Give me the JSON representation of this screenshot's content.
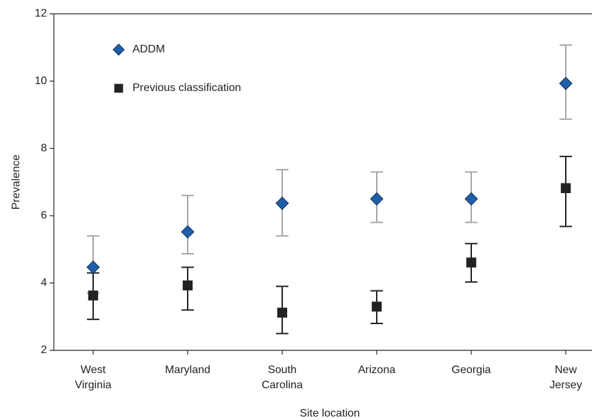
{
  "chart_data": {
    "type": "errorbar",
    "x_label": "Site location",
    "y_label": "Prevalence",
    "categories": [
      [
        "West",
        "Virginia"
      ],
      [
        "Maryland"
      ],
      [
        "South",
        "Carolina"
      ],
      [
        "Arizona"
      ],
      [
        "Georgia"
      ],
      [
        "New",
        "Jersey"
      ]
    ],
    "ylim": [
      2,
      12
    ],
    "yticks": [
      2,
      4,
      6,
      8,
      10,
      12
    ],
    "series": [
      {
        "name": "ADDM",
        "marker": "diamond",
        "color": "#1f5fa8",
        "error_color": "#a6a6a6",
        "values": [
          4.47,
          5.52,
          6.37,
          6.5,
          6.5,
          9.93
        ],
        "low": [
          3.7,
          4.87,
          5.4,
          5.8,
          5.8,
          8.87
        ],
        "high": [
          5.4,
          6.6,
          7.37,
          7.3,
          7.3,
          11.07
        ]
      },
      {
        "name": "Previous classification",
        "marker": "square",
        "color": "#222222",
        "error_color": "#222222",
        "values": [
          3.63,
          3.93,
          3.12,
          3.3,
          4.61,
          6.82
        ],
        "low": [
          2.92,
          3.2,
          2.5,
          2.8,
          4.03,
          5.68
        ],
        "high": [
          4.3,
          4.47,
          3.9,
          3.77,
          5.17,
          7.76
        ]
      }
    ]
  }
}
